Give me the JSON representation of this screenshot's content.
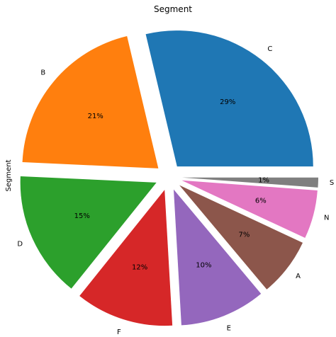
{
  "chart_data": {
    "type": "pie",
    "title": "Segment",
    "ylabel": "Segment",
    "slices": [
      {
        "label": "C",
        "percent_label": "29%",
        "value": 29.3,
        "color": "#1f77b4"
      },
      {
        "label": "B",
        "percent_label": "21%",
        "value": 21.0,
        "color": "#ff7f0e"
      },
      {
        "label": "D",
        "percent_label": "15%",
        "value": 15.3,
        "color": "#2ca02c"
      },
      {
        "label": "F",
        "percent_label": "12%",
        "value": 11.9,
        "color": "#d62728"
      },
      {
        "label": "E",
        "percent_label": "10%",
        "value": 10.4,
        "color": "#9467bd"
      },
      {
        "label": "A",
        "percent_label": "7%",
        "value": 7.1,
        "color": "#8c564b"
      },
      {
        "label": "N",
        "percent_label": "6%",
        "value": 5.9,
        "color": "#e377c2"
      },
      {
        "label": "S",
        "percent_label": "1%",
        "value": 1.2,
        "color": "#7f7f7f"
      }
    ],
    "start_angle_deg": 0,
    "direction": "counterclockwise",
    "exploded": true
  }
}
